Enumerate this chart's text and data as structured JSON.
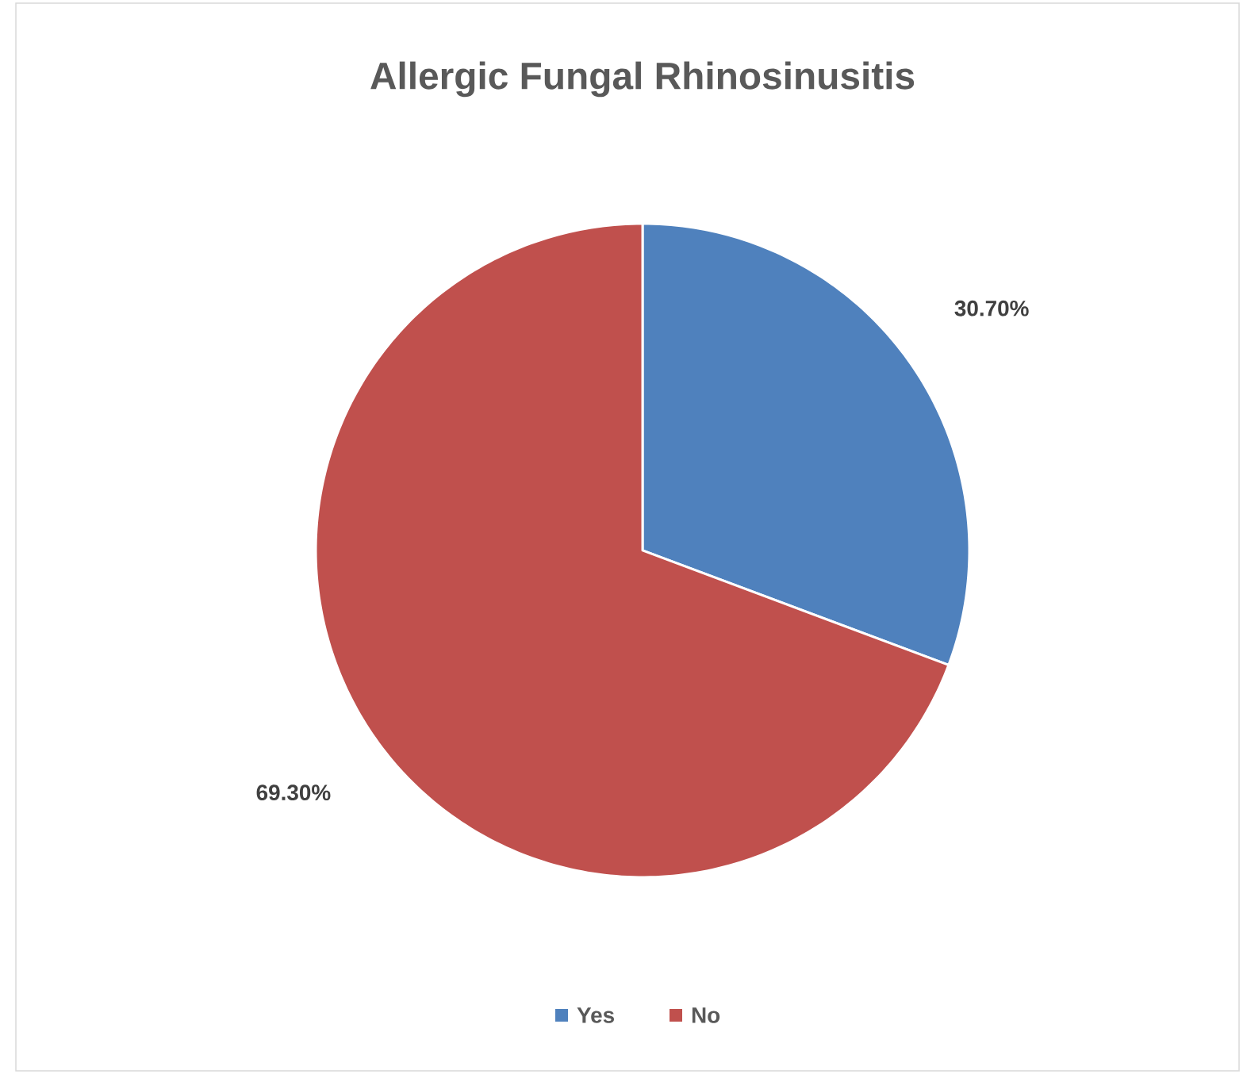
{
  "chart_data": {
    "type": "pie",
    "title": "Allergic Fungal Rhinosinusitis",
    "categories": [
      "Yes",
      "No"
    ],
    "values": [
      30.7,
      69.3
    ],
    "value_labels": [
      "30.70%",
      "69.30%"
    ],
    "colors": [
      "#4f81bd",
      "#c0504d"
    ],
    "legend": "bottom"
  }
}
